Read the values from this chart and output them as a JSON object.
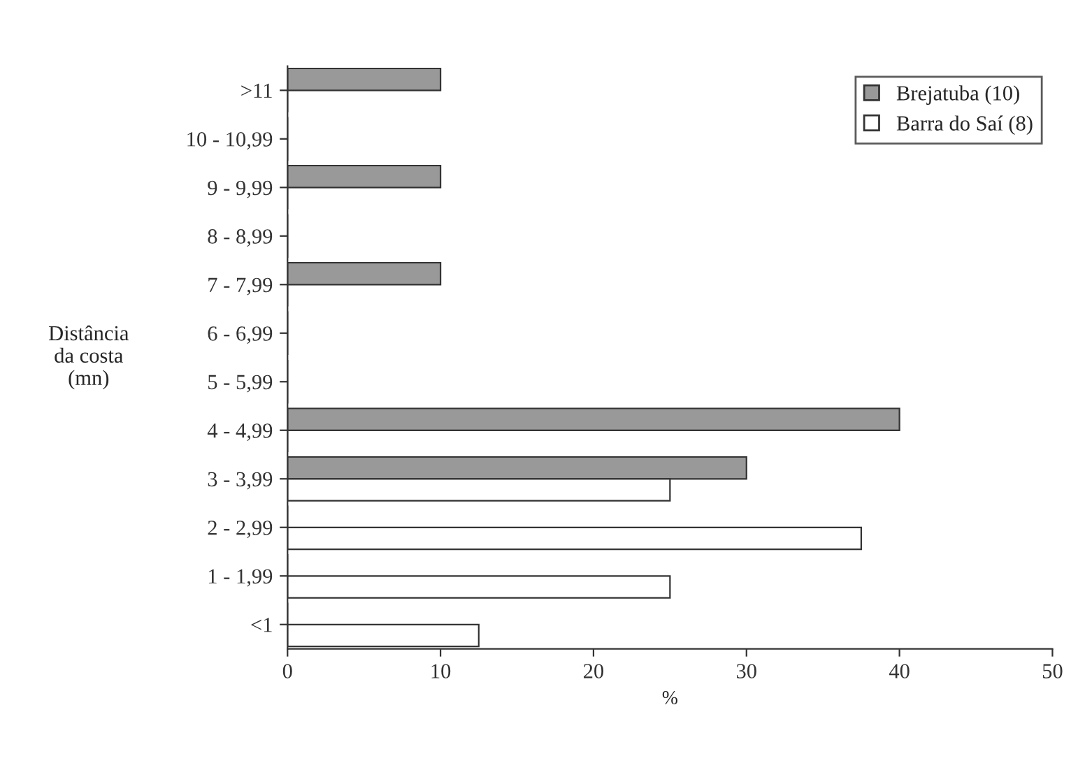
{
  "chart_data": {
    "type": "bar",
    "orientation": "horizontal",
    "xlabel": "%",
    "ylabel": "Distância\nda costa\n(mn)",
    "categories": [
      ">11",
      "10 - 10,99",
      "9 - 9,99",
      "8 - 8,99",
      "7 - 7,99",
      "6 - 6,99",
      "5 - 5,99",
      "4 - 4,99",
      "3 - 3,99",
      "2 - 2,99",
      "1 - 1,99",
      "<1"
    ],
    "series": [
      {
        "name": "Brejatuba (10)",
        "color": "#999999",
        "values": [
          10,
          0,
          10,
          0,
          10,
          0,
          0,
          40,
          30,
          0,
          0,
          0
        ]
      },
      {
        "name": "Barra do Saí (8)",
        "color": "#ffffff",
        "values": [
          0,
          0,
          0,
          0,
          0,
          0,
          0,
          0,
          25,
          37.5,
          25,
          12.5
        ]
      }
    ],
    "xlim": [
      0,
      50
    ],
    "xticks": [
      0,
      10,
      20,
      30,
      40,
      50
    ],
    "grid": false,
    "legend": "top right"
  }
}
